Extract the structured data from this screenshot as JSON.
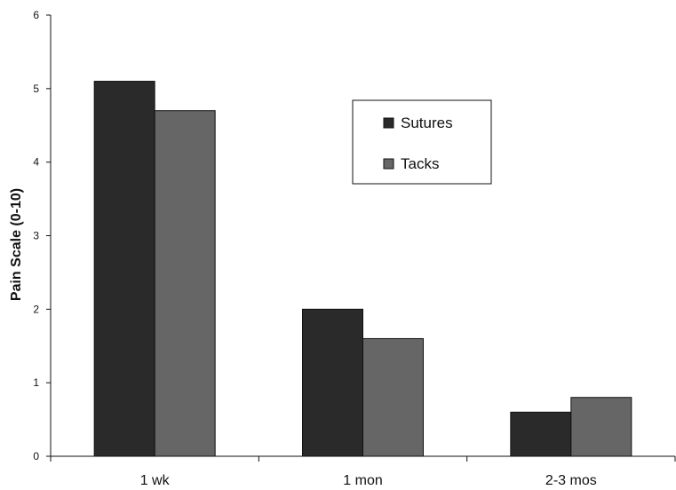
{
  "chart_data": {
    "type": "bar",
    "title": "",
    "xlabel": "",
    "ylabel": "Pain Scale (0-10)",
    "categories": [
      "1 wk",
      "1 mon",
      "2-3 mos"
    ],
    "series": [
      {
        "name": "Sutures",
        "values": [
          5.1,
          2.0,
          0.6
        ],
        "color": "#2a2a2a"
      },
      {
        "name": "Tacks",
        "values": [
          4.7,
          1.6,
          0.8
        ],
        "color": "#666666"
      }
    ],
    "ylim": [
      0,
      6
    ],
    "yticks": [
      0,
      1,
      2,
      3,
      4,
      5,
      6
    ],
    "grid": false,
    "legend_position": "upper-right-inside"
  }
}
